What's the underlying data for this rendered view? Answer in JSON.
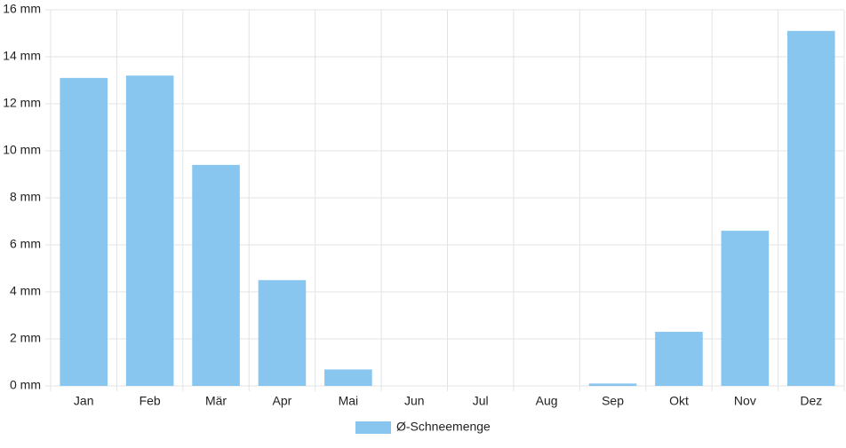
{
  "chart_data": {
    "type": "bar",
    "categories": [
      "Jan",
      "Feb",
      "Mär",
      "Apr",
      "Mai",
      "Jun",
      "Jul",
      "Aug",
      "Sep",
      "Okt",
      "Nov",
      "Dez"
    ],
    "series": [
      {
        "name": "Ø-Schneemenge",
        "color": "#88c6f0",
        "values": [
          13.1,
          13.2,
          9.4,
          4.5,
          0.7,
          0,
          0,
          0,
          0.1,
          2.3,
          6.6,
          15.1
        ]
      }
    ],
    "ylim": [
      0,
      16
    ],
    "yticks": [
      {
        "value": 0,
        "label": "0 mm"
      },
      {
        "value": 2,
        "label": "2 mm"
      },
      {
        "value": 4,
        "label": "4 mm"
      },
      {
        "value": 6,
        "label": "6 mm"
      },
      {
        "value": 8,
        "label": "8 mm"
      },
      {
        "value": 10,
        "label": "10 mm"
      },
      {
        "value": 12,
        "label": "12 mm"
      },
      {
        "value": 14,
        "label": "14 mm"
      },
      {
        "value": 16,
        "label": "16 mm"
      }
    ],
    "grid": true,
    "legend": "bottom"
  }
}
